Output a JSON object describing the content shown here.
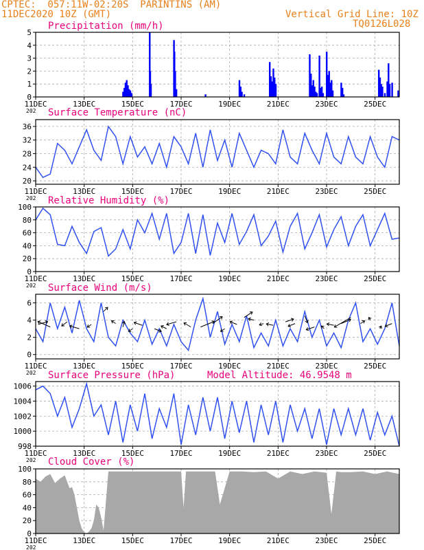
{
  "header": {
    "line1": "CPTEC:  057:11W-02:20S  PARINTINS (AM)",
    "line2": "11DEC2020 10Z (GMT)",
    "grid_note": "Vertical Grid Line: 10Z",
    "code": "TQ0126L028"
  },
  "x_axis": {
    "ticks": [
      "11DEC",
      "13DEC",
      "15DEC",
      "17DEC",
      "19DEC",
      "21DEC",
      "23DEC",
      "25DEC"
    ],
    "tick_days": [
      0,
      2,
      4,
      6,
      8,
      10,
      12,
      14
    ],
    "year_stub": "202",
    "day_range": [
      0,
      15
    ]
  },
  "chart_data": [
    {
      "type": "bar",
      "title": "Precipitation (mm/h)",
      "ylim": [
        0,
        5
      ],
      "yticks": [
        "0",
        "1",
        "2",
        "3",
        "4",
        "5"
      ],
      "color": "#0000ff",
      "x": [
        3.6,
        3.65,
        3.7,
        3.75,
        3.8,
        3.85,
        3.9,
        3.95,
        4.7,
        4.72,
        4.75,
        5.7,
        5.72,
        5.75,
        5.8,
        7.0,
        8.4,
        8.45,
        8.5,
        8.6,
        9.65,
        9.7,
        9.75,
        9.8,
        9.85,
        9.9,
        11.3,
        11.35,
        11.4,
        11.45,
        11.5,
        11.55,
        11.6,
        11.7,
        11.75,
        11.8,
        11.85,
        12.0,
        12.05,
        12.1,
        12.15,
        12.2,
        12.25,
        12.6,
        12.65,
        12.7,
        14.15,
        14.2,
        14.25,
        14.3,
        14.4,
        14.5,
        14.55,
        14.6,
        14.7,
        14.95
      ],
      "values": [
        0.4,
        0.7,
        1.1,
        1.3,
        0.9,
        0.6,
        0.5,
        0.3,
        5.0,
        2.0,
        1.0,
        4.4,
        3.5,
        2.0,
        0.6,
        0.2,
        1.3,
        0.8,
        0.4,
        0.2,
        2.7,
        1.6,
        1.2,
        2.2,
        1.5,
        1.0,
        3.3,
        1.8,
        0.9,
        1.3,
        0.8,
        0.4,
        0.3,
        3.2,
        0.7,
        0.8,
        0.3,
        3.5,
        1.7,
        2.0,
        1.1,
        1.3,
        0.5,
        1.1,
        0.7,
        0.2,
        2.1,
        1.5,
        1.0,
        0.8,
        0.3,
        1.2,
        2.6,
        1.0,
        1.1,
        0.5
      ]
    },
    {
      "type": "line",
      "title": "Surface Temperature (nC)",
      "ylim": [
        19,
        38
      ],
      "yticks": [
        "20",
        "24",
        "28",
        "32",
        "36"
      ],
      "color": "#3050f0",
      "x": [
        0,
        0.3,
        0.6,
        0.9,
        1.2,
        1.5,
        1.8,
        2.1,
        2.4,
        2.7,
        3.0,
        3.3,
        3.6,
        3.9,
        4.2,
        4.5,
        4.8,
        5.1,
        5.4,
        5.7,
        6.0,
        6.3,
        6.6,
        6.9,
        7.2,
        7.5,
        7.8,
        8.1,
        8.4,
        8.7,
        9.0,
        9.3,
        9.6,
        9.9,
        10.2,
        10.5,
        10.8,
        11.1,
        11.4,
        11.7,
        12.0,
        12.3,
        12.6,
        12.9,
        13.2,
        13.5,
        13.8,
        14.1,
        14.4,
        14.7,
        15.0
      ],
      "values": [
        24,
        21,
        22,
        31,
        29,
        25,
        30,
        35,
        29,
        26,
        36,
        33,
        25,
        33,
        27,
        30,
        25,
        31,
        24,
        33,
        30,
        25,
        34,
        24,
        35,
        26,
        32,
        24,
        34,
        29,
        24,
        29,
        28,
        25,
        35,
        27,
        25,
        34,
        29,
        25,
        34,
        27,
        25,
        33,
        27,
        25,
        33,
        27,
        24,
        33,
        32
      ]
    },
    {
      "type": "line",
      "title": "Relative Humidity (%)",
      "ylim": [
        0,
        100
      ],
      "yticks": [
        "0",
        "20",
        "40",
        "60",
        "80",
        "100"
      ],
      "color": "#3050f0",
      "x": [
        0,
        0.3,
        0.6,
        0.9,
        1.2,
        1.5,
        1.8,
        2.1,
        2.4,
        2.7,
        3.0,
        3.3,
        3.6,
        3.9,
        4.2,
        4.5,
        4.8,
        5.1,
        5.4,
        5.7,
        6.0,
        6.3,
        6.6,
        6.9,
        7.2,
        7.5,
        7.8,
        8.1,
        8.4,
        8.7,
        9.0,
        9.3,
        9.6,
        9.9,
        10.2,
        10.5,
        10.8,
        11.1,
        11.4,
        11.7,
        12.0,
        12.3,
        12.6,
        12.9,
        13.2,
        13.5,
        13.8,
        14.1,
        14.4,
        14.7,
        15.0
      ],
      "values": [
        80,
        98,
        88,
        42,
        40,
        70,
        45,
        28,
        62,
        68,
        24,
        35,
        65,
        35,
        80,
        60,
        90,
        50,
        90,
        28,
        45,
        90,
        28,
        88,
        25,
        75,
        45,
        90,
        42,
        62,
        88,
        40,
        55,
        78,
        30,
        70,
        90,
        35,
        60,
        88,
        38,
        65,
        85,
        40,
        70,
        88,
        40,
        65,
        90,
        50,
        52
      ]
    },
    {
      "type": "line",
      "title": "Surface Wind (m/s)",
      "ylim": [
        -0.5,
        7
      ],
      "yticks": [
        "0",
        "2",
        "4",
        "6"
      ],
      "color": "#3050f0",
      "x": [
        0,
        0.3,
        0.6,
        0.9,
        1.2,
        1.5,
        1.8,
        2.1,
        2.4,
        2.7,
        3.0,
        3.3,
        3.6,
        3.9,
        4.2,
        4.5,
        4.8,
        5.1,
        5.4,
        5.7,
        6.0,
        6.3,
        6.6,
        6.9,
        7.2,
        7.5,
        7.8,
        8.1,
        8.4,
        8.7,
        9.0,
        9.3,
        9.6,
        9.9,
        10.2,
        10.5,
        10.8,
        11.1,
        11.4,
        11.7,
        12.0,
        12.3,
        12.6,
        12.9,
        13.2,
        13.5,
        13.8,
        14.1,
        14.4,
        14.7,
        15.0
      ],
      "values": [
        3,
        1.5,
        6,
        3,
        5.5,
        2.5,
        6.3,
        3,
        1.5,
        6,
        2,
        1,
        4,
        2.5,
        1.5,
        4,
        1.2,
        3,
        1,
        3.5,
        1.5,
        0.5,
        4,
        6.5,
        2,
        5,
        1.2,
        3.5,
        1.5,
        4.5,
        0.8,
        2.5,
        1,
        4,
        1,
        3,
        1.5,
        5,
        2,
        4,
        1,
        2.5,
        0.8,
        4,
        6,
        1.5,
        3,
        1.2,
        3,
        6,
        1
      ]
    },
    {
      "type": "line",
      "title": "Surface Pressure (hPa)",
      "ylim": [
        998,
        1006.6
      ],
      "yticks": [
        "998",
        "1000",
        "1002",
        "1004",
        "1006"
      ],
      "color": "#3050f0",
      "x": [
        0,
        0.3,
        0.6,
        0.9,
        1.2,
        1.5,
        1.8,
        2.1,
        2.4,
        2.7,
        3.0,
        3.3,
        3.6,
        3.9,
        4.2,
        4.5,
        4.8,
        5.1,
        5.4,
        5.7,
        6.0,
        6.3,
        6.6,
        6.9,
        7.2,
        7.5,
        7.8,
        8.1,
        8.4,
        8.7,
        9.0,
        9.3,
        9.6,
        9.9,
        10.2,
        10.5,
        10.8,
        11.1,
        11.4,
        11.7,
        12.0,
        12.3,
        12.6,
        12.9,
        13.2,
        13.5,
        13.8,
        14.1,
        14.4,
        14.7,
        15.0
      ],
      "values": [
        1005.5,
        1006,
        1005,
        1002,
        1004.5,
        1000.5,
        1003,
        1006.3,
        1002,
        1003.5,
        999.5,
        1004,
        998.5,
        1003.5,
        1000,
        1005,
        999,
        1003,
        1000.5,
        1005,
        998.2,
        1003.5,
        999.5,
        1004.5,
        1000,
        1004.5,
        999,
        1004,
        999.8,
        1004,
        998.5,
        1003.5,
        999.5,
        1004,
        998.5,
        1003.5,
        1000,
        1003,
        999,
        1003,
        998.2,
        1003,
        999.5,
        1003,
        999.5,
        1003,
        998.8,
        1002.5,
        999.5,
        1002,
        998
      ]
    },
    {
      "type": "area",
      "title": "Cloud Cover (%)",
      "ylim": [
        0,
        100
      ],
      "yticks": [
        "0",
        "20",
        "40",
        "60",
        "80",
        "100"
      ],
      "color": "#a8a8a8",
      "x": [
        0,
        0.2,
        0.4,
        0.6,
        0.8,
        1.0,
        1.2,
        1.4,
        1.5,
        1.6,
        1.7,
        1.8,
        1.9,
        2.0,
        2.1,
        2.2,
        2.3,
        2.4,
        2.5,
        2.6,
        2.7,
        2.8,
        3.0,
        3.2,
        3.4,
        3.6,
        3.8,
        4.0,
        4.5,
        5.0,
        5.5,
        6.0,
        6.1,
        6.2,
        6.5,
        7.0,
        7.4,
        7.6,
        8.0,
        8.5,
        9.0,
        9.5,
        10.0,
        10.5,
        11.0,
        11.5,
        12.0,
        12.2,
        12.4,
        12.6,
        13.0,
        13.5,
        14.0,
        14.5,
        15.0
      ],
      "values": [
        85,
        80,
        88,
        92,
        78,
        85,
        90,
        70,
        72,
        60,
        40,
        20,
        8,
        2,
        0,
        3,
        8,
        20,
        45,
        40,
        25,
        5,
        96,
        96,
        96,
        96,
        96,
        96,
        96,
        96,
        96,
        96,
        40,
        96,
        96,
        96,
        96,
        45,
        96,
        96,
        95,
        96,
        85,
        96,
        92,
        96,
        94,
        30,
        96,
        95,
        95,
        96,
        92,
        96,
        92
      ]
    }
  ],
  "wind_arrows": {
    "x": [
      0.1,
      0.6,
      1.3,
      1.8,
      2.3,
      2.8,
      3.3,
      3.6,
      4.0,
      4.4,
      4.9,
      5.4,
      5.8,
      6.4,
      6.8,
      7.3,
      7.8,
      8.3,
      8.6,
      9.0,
      9.4,
      9.8,
      10.3,
      10.7,
      11.1,
      11.5,
      11.9,
      12.3,
      12.6,
      13.0,
      13.4,
      13.8,
      14.2,
      14.7
    ],
    "y": [
      3.5,
      3.2,
      3.8,
      3.0,
      3.5,
      5.0,
      3.6,
      3.2,
      3.0,
      3.4,
      3.0,
      3.0,
      3.8,
      3.2,
      3.2,
      3.6,
      3.0,
      3.5,
      4.3,
      4.0,
      3.6,
      3.4,
      3.8,
      3.6,
      4.5,
      3.2,
      3.0,
      3.4,
      3.6,
      4.3,
      3.6,
      4.0,
      3.0,
      3.6
    ],
    "u": [
      14,
      -18,
      -8,
      -14,
      -6,
      6,
      -6,
      2,
      -6,
      -12,
      10,
      -8,
      -14,
      -10,
      20,
      14,
      -6,
      -10,
      12,
      -8,
      -6,
      -10,
      12,
      -10,
      4,
      -12,
      -4,
      -10,
      14,
      -24,
      6,
      -2,
      2,
      -10
    ],
    "v": [
      -4,
      -8,
      6,
      -4,
      4,
      -6,
      -4,
      -8,
      4,
      -4,
      4,
      -4,
      4,
      -6,
      -8,
      -10,
      4,
      -4,
      -8,
      -2,
      2,
      -2,
      -4,
      4,
      10,
      4,
      -4,
      -2,
      -6,
      14,
      -4,
      -4,
      -4,
      4
    ]
  },
  "pressure_note": "Model Altitude: 46.9548 m"
}
